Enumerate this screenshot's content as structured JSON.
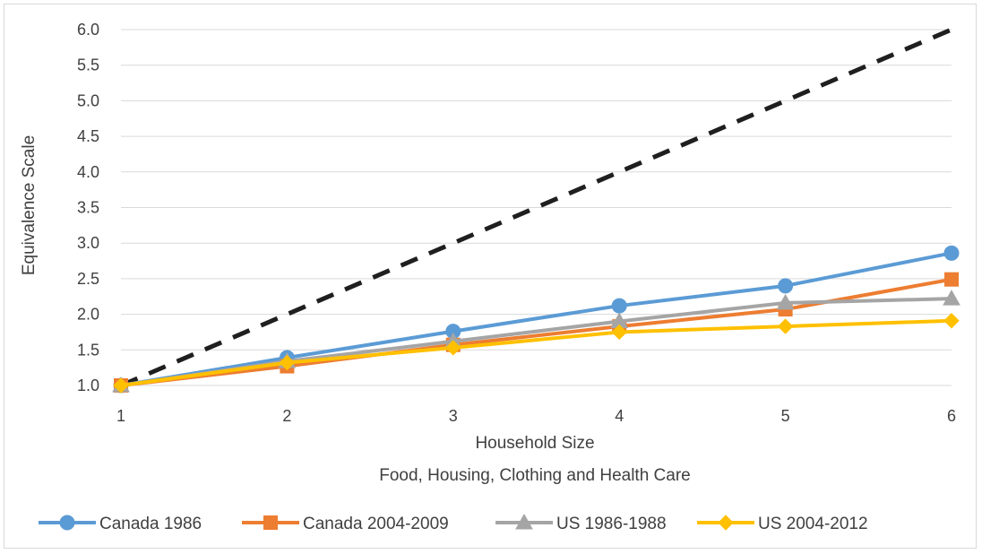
{
  "chart_data": {
    "type": "line",
    "title": "",
    "xlabel": "Household Size",
    "xlabel_sub": "Food, Housing, Clothing and Health Care",
    "ylabel": "Equivalence Scale",
    "x": [
      1,
      2,
      3,
      4,
      5,
      6
    ],
    "ylim": [
      1.0,
      6.0
    ],
    "y_ticks": [
      "1.0",
      "1.5",
      "2.0",
      "2.5",
      "3.0",
      "3.5",
      "4.0",
      "4.5",
      "5.0",
      "5.5",
      "6.0"
    ],
    "grid": true,
    "legend_position": "bottom",
    "reference_line": {
      "values": [
        1,
        2,
        3,
        4,
        5,
        6
      ],
      "color": "#1f1f1f",
      "style": "dashed"
    },
    "series": [
      {
        "name": "Canada 1986",
        "values": [
          1.0,
          1.39,
          1.76,
          2.12,
          2.4,
          2.86
        ],
        "color": "#5b9bd5",
        "marker": "circle"
      },
      {
        "name": "Canada 2004-2009",
        "values": [
          1.0,
          1.27,
          1.57,
          1.83,
          2.07,
          2.49
        ],
        "color": "#ed7d31",
        "marker": "square"
      },
      {
        "name": "US 1986-1988",
        "values": [
          1.0,
          1.34,
          1.62,
          1.9,
          2.16,
          2.22
        ],
        "color": "#a5a5a5",
        "marker": "triangle"
      },
      {
        "name": "US 2004-2012",
        "values": [
          1.0,
          1.32,
          1.53,
          1.75,
          1.83,
          1.91
        ],
        "color": "#ffc000",
        "marker": "diamond"
      }
    ]
  }
}
